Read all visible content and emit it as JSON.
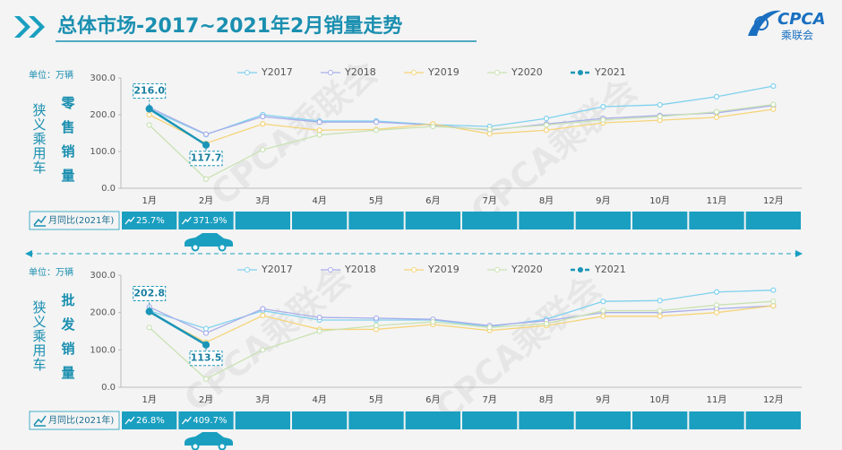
{
  "header": {
    "title": "总体市场-2017~2021年2月销量走势",
    "logo_text": "CPCA",
    "logo_sub": "乘联会"
  },
  "watermark": "CPCA乘联会",
  "chart_data": [
    {
      "type": "line",
      "unit": "单位：万辆",
      "side_label": "狭义乘用车",
      "metric_label": "零售销量",
      "yoy_label": "月同比(2021年)",
      "yoy": [
        "25.7%",
        "371.9%"
      ],
      "categories": [
        "1月",
        "2月",
        "3月",
        "4月",
        "5月",
        "6月",
        "7月",
        "8月",
        "9月",
        "10月",
        "11月",
        "12月"
      ],
      "ylim": [
        0,
        300
      ],
      "yticks": [
        {
          "value": 0,
          "label": "0.0"
        },
        {
          "value": 100,
          "label": "100.0"
        },
        {
          "value": 200,
          "label": "200.0"
        },
        {
          "value": 300,
          "label": "300.0"
        }
      ],
      "grid": false,
      "legend": "top",
      "series": [
        {
          "name": "Y2017",
          "color": "#7fd1ee",
          "values": [
            215,
            146,
            200,
            183,
            183,
            173,
            168,
            190,
            222,
            227,
            249,
            278
          ]
        },
        {
          "name": "Y2018",
          "color": "#a9aeea",
          "values": [
            220,
            147,
            195,
            180,
            180,
            172,
            158,
            175,
            190,
            198,
            205,
            225
          ]
        },
        {
          "name": "Y2019",
          "color": "#f5d479",
          "values": [
            200,
            122,
            175,
            158,
            160,
            175,
            148,
            158,
            178,
            185,
            193,
            215
          ]
        },
        {
          "name": "Y2020",
          "color": "#c9e2b3",
          "values": [
            172,
            25,
            105,
            145,
            158,
            168,
            160,
            172,
            186,
            195,
            208,
            228
          ]
        },
        {
          "name": "Y2021",
          "color": "#1a95b8",
          "values": [
            216.0,
            117.7,
            null,
            null,
            null,
            null,
            null,
            null,
            null,
            null,
            null,
            null
          ],
          "value_labels": [
            "216.0",
            "117.7",
            null,
            null,
            null,
            null,
            null,
            null,
            null,
            null,
            null,
            null
          ]
        }
      ]
    },
    {
      "type": "line",
      "unit": "单位：万辆",
      "side_label": "狭义乘用车",
      "metric_label": "批发销量",
      "yoy_label": "月同比(2021年)",
      "yoy": [
        "26.8%",
        "409.7%"
      ],
      "categories": [
        "1月",
        "2月",
        "3月",
        "4月",
        "5月",
        "6月",
        "7月",
        "8月",
        "9月",
        "10月",
        "11月",
        "12月"
      ],
      "ylim": [
        0,
        300
      ],
      "yticks": [
        {
          "value": 0,
          "label": "0.0"
        },
        {
          "value": 100,
          "label": "100.0"
        },
        {
          "value": 200,
          "label": "200.0"
        },
        {
          "value": 300,
          "label": "300.0"
        }
      ],
      "grid": false,
      "legend": "top",
      "series": [
        {
          "name": "Y2017",
          "color": "#7fd1ee",
          "values": [
            205,
            157,
            205,
            180,
            180,
            180,
            162,
            182,
            230,
            232,
            255,
            260
          ]
        },
        {
          "name": "Y2018",
          "color": "#a9aeea",
          "values": [
            215,
            145,
            210,
            187,
            185,
            182,
            165,
            178,
            200,
            200,
            210,
            218
          ]
        },
        {
          "name": "Y2019",
          "color": "#f5d479",
          "values": [
            200,
            120,
            192,
            155,
            155,
            168,
            152,
            165,
            190,
            190,
            200,
            218
          ]
        },
        {
          "name": "Y2020",
          "color": "#c9e2b3",
          "values": [
            160,
            22,
            100,
            150,
            165,
            175,
            160,
            170,
            205,
            205,
            220,
            230
          ]
        },
        {
          "name": "Y2021",
          "color": "#1a95b8",
          "values": [
            202.8,
            113.5,
            null,
            null,
            null,
            null,
            null,
            null,
            null,
            null,
            null,
            null
          ],
          "value_labels": [
            "202.8",
            "113.5",
            null,
            null,
            null,
            null,
            null,
            null,
            null,
            null,
            null,
            null
          ]
        }
      ]
    }
  ]
}
